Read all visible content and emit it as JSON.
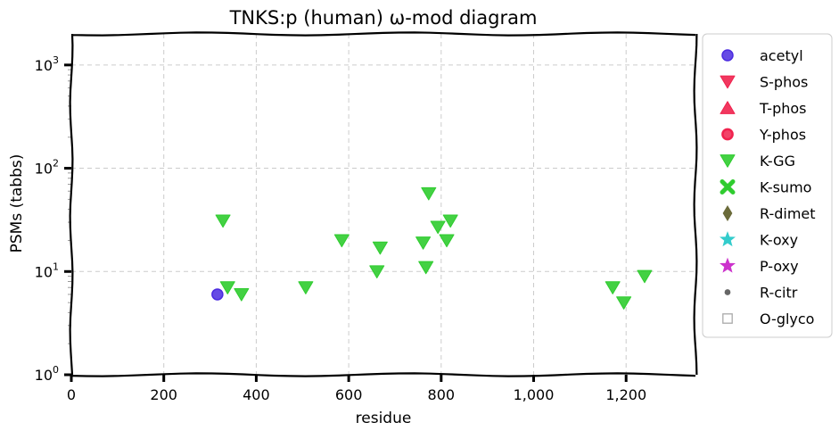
{
  "chart_data": {
    "type": "scatter",
    "title": "TNKS:p (human) ω-mod diagram",
    "xlabel": "residue",
    "ylabel": "PSMs (tabbs)",
    "xlim": [
      0,
      1350
    ],
    "ylim": [
      1,
      2000
    ],
    "y_scale": "log",
    "x_ticks": [
      {
        "value": 0,
        "label": "0"
      },
      {
        "value": 200,
        "label": "200"
      },
      {
        "value": 400,
        "label": "400"
      },
      {
        "value": 600,
        "label": "600"
      },
      {
        "value": 800,
        "label": "800"
      },
      {
        "value": 1000,
        "label": "1,000"
      },
      {
        "value": 1200,
        "label": "1,200"
      }
    ],
    "y_ticks": [
      {
        "value": 1,
        "base": "10",
        "exp": "0"
      },
      {
        "value": 10,
        "base": "10",
        "exp": "1"
      },
      {
        "value": 100,
        "base": "10",
        "exp": "2"
      },
      {
        "value": 1000,
        "base": "10",
        "exp": "3"
      }
    ],
    "grid": true,
    "legend_position": "outside-right",
    "legend": [
      {
        "name": "acetyl",
        "marker": "circle",
        "color": "#4b2be0"
      },
      {
        "name": "S-phos",
        "marker": "triangle-down",
        "color": "#f0224e"
      },
      {
        "name": "T-phos",
        "marker": "triangle-up",
        "color": "#f0224e"
      },
      {
        "name": "Y-phos",
        "marker": "circle-ring",
        "color": "#f0224e"
      },
      {
        "name": "K-GG",
        "marker": "triangle-down",
        "color": "#2fcc2f"
      },
      {
        "name": "K-sumo",
        "marker": "x",
        "color": "#2fcc2f"
      },
      {
        "name": "R-dimet",
        "marker": "diamond",
        "color": "#6b6b3a"
      },
      {
        "name": "K-oxy",
        "marker": "star",
        "color": "#33cccc"
      },
      {
        "name": "P-oxy",
        "marker": "star",
        "color": "#cc33cc"
      },
      {
        "name": "R-citr",
        "marker": "dot",
        "color": "#666666"
      },
      {
        "name": "O-glyco",
        "marker": "square-open",
        "color": "#aaaaaa"
      }
    ],
    "series": [
      {
        "name": "acetyl",
        "points": [
          {
            "x": 316,
            "y": 6
          }
        ]
      },
      {
        "name": "K-GG",
        "points": [
          {
            "x": 328,
            "y": 31
          },
          {
            "x": 338,
            "y": 7
          },
          {
            "x": 368,
            "y": 6
          },
          {
            "x": 507,
            "y": 7
          },
          {
            "x": 585,
            "y": 20
          },
          {
            "x": 661,
            "y": 10
          },
          {
            "x": 668,
            "y": 17
          },
          {
            "x": 761,
            "y": 19
          },
          {
            "x": 767,
            "y": 11
          },
          {
            "x": 773,
            "y": 57
          },
          {
            "x": 793,
            "y": 27
          },
          {
            "x": 812,
            "y": 20
          },
          {
            "x": 820,
            "y": 31
          },
          {
            "x": 1171,
            "y": 7
          },
          {
            "x": 1195,
            "y": 5
          },
          {
            "x": 1240,
            "y": 9
          }
        ]
      }
    ]
  }
}
